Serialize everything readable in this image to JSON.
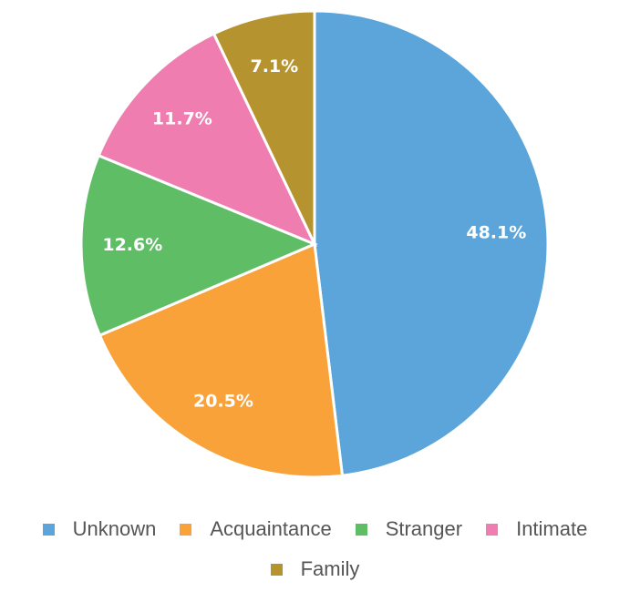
{
  "chart_data": {
    "type": "pie",
    "categories": [
      "Unknown",
      "Acquaintance",
      "Stranger",
      "Intimate",
      "Family"
    ],
    "values": [
      48.1,
      20.5,
      12.6,
      11.7,
      7.1
    ],
    "value_labels": [
      "48.1%",
      "20.5%",
      "12.6%",
      "11.7%",
      "7.1%"
    ],
    "colors": [
      "#5ca5da",
      "#f9a23a",
      "#5fbd65",
      "#ef7db0",
      "#b5942f"
    ],
    "legend": "bottom"
  }
}
